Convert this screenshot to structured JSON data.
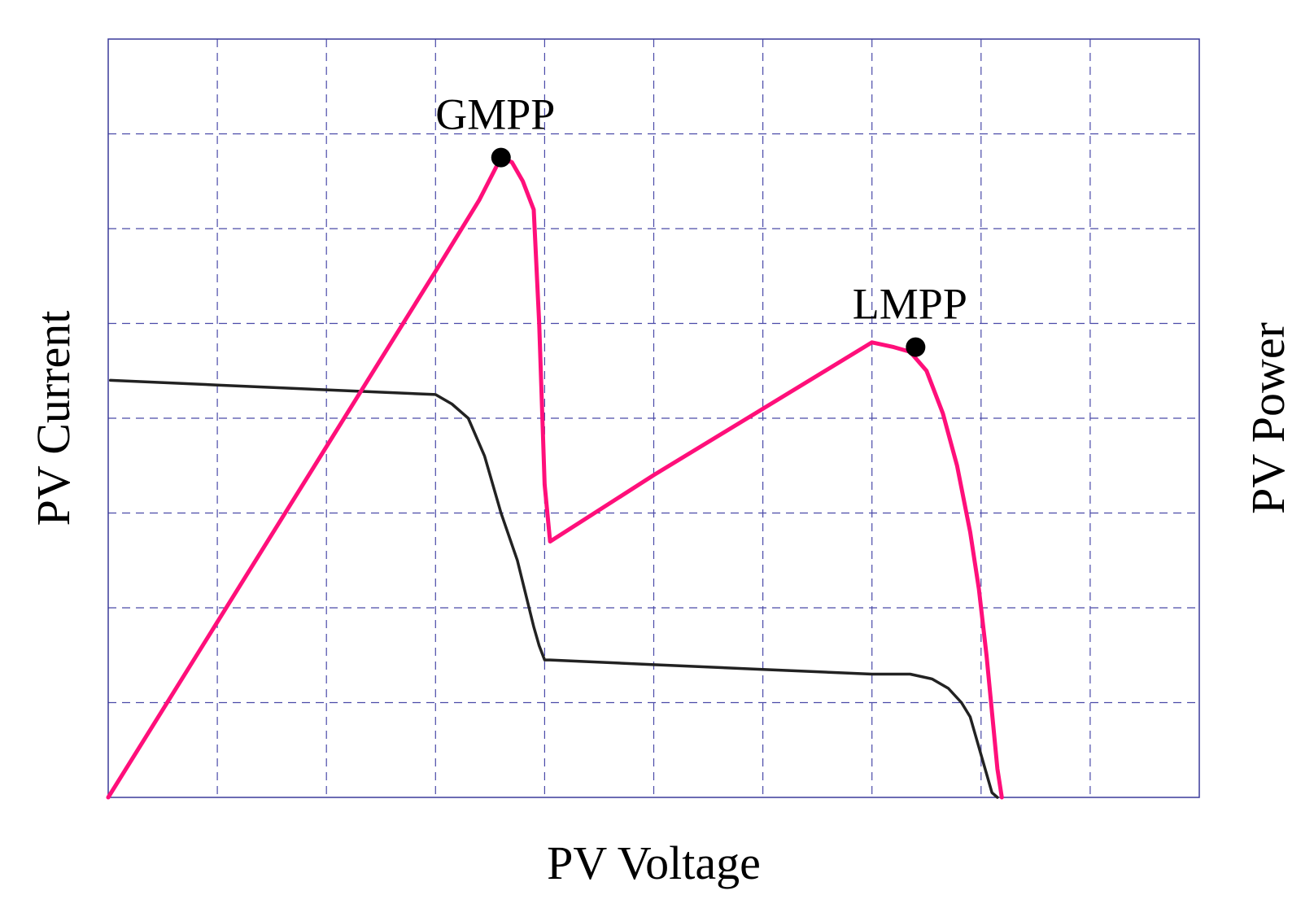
{
  "chart_data": {
    "type": "line",
    "title": "",
    "xlabel": "PV Voltage",
    "ylabel": "PV Current",
    "y2label": "PV Power",
    "xlim": [
      0,
      10
    ],
    "ylim": [
      0,
      8
    ],
    "grid": true,
    "colors": {
      "frame": "#3a3a9a",
      "grid": "#4a4aa8",
      "power": "#ff0f7a",
      "current": "#222222",
      "marker": "#000000"
    },
    "series": [
      {
        "name": "",
        "axis": "current",
        "x": [
          0.02,
          1,
          2,
          3,
          3.15,
          3.3,
          3.45,
          3.6,
          3.75,
          3.9,
          3.95,
          4.0,
          4.05,
          5,
          6,
          7,
          7.35,
          7.55,
          7.7,
          7.82,
          7.9,
          7.95,
          8.0,
          8.05,
          8.1,
          8.15
        ],
        "y": [
          4.4,
          4.35,
          4.3,
          4.25,
          4.15,
          4.0,
          3.6,
          3.0,
          2.5,
          1.8,
          1.6,
          1.45,
          1.45,
          1.4,
          1.35,
          1.3,
          1.3,
          1.25,
          1.15,
          1.0,
          0.85,
          0.65,
          0.45,
          0.25,
          0.05,
          0.0
        ]
      },
      {
        "name": "",
        "axis": "power",
        "x": [
          0.0,
          1.0,
          2.0,
          3.0,
          3.4,
          3.6,
          3.7,
          3.8,
          3.9,
          3.95,
          4.0,
          4.05,
          5.0,
          6.0,
          7.0,
          7.2,
          7.35,
          7.5,
          7.65,
          7.78,
          7.9,
          7.98,
          8.05,
          8.1,
          8.15,
          8.19
        ],
        "y": [
          0.0,
          1.85,
          3.7,
          5.55,
          6.3,
          6.75,
          6.7,
          6.5,
          6.2,
          5.0,
          3.3,
          2.7,
          3.4,
          4.1,
          4.8,
          4.75,
          4.7,
          4.5,
          4.05,
          3.5,
          2.8,
          2.2,
          1.5,
          0.9,
          0.3,
          0.0
        ]
      }
    ],
    "annotations": [
      {
        "label": "GMPP",
        "x": 3.6,
        "y": 6.75
      },
      {
        "label": "LMPP",
        "x": 7.4,
        "y": 4.75
      }
    ]
  }
}
